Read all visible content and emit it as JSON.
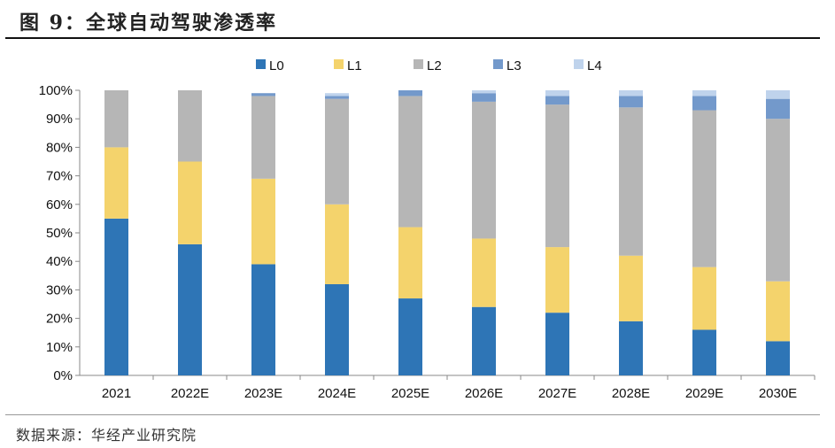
{
  "title": "图 9：全球自动驾驶渗透率",
  "source": "数据来源：华经产业研究院",
  "chart_data": {
    "type": "bar",
    "stacked": true,
    "title": "",
    "xlabel": "",
    "ylabel": "",
    "ylim": [
      0,
      100
    ],
    "yticks": [
      "0%",
      "10%",
      "20%",
      "30%",
      "40%",
      "50%",
      "60%",
      "70%",
      "80%",
      "90%",
      "100%"
    ],
    "grid": false,
    "legend": "top",
    "categories": [
      "2021",
      "2022E",
      "2023E",
      "2024E",
      "2025E",
      "2026E",
      "2027E",
      "2028E",
      "2029E",
      "2030E"
    ],
    "series": [
      {
        "name": "L0",
        "color": "#2E75B6",
        "values": [
          55,
          46,
          39,
          32,
          27,
          24,
          22,
          19,
          16,
          12
        ]
      },
      {
        "name": "L1",
        "color": "#F4D36C",
        "values": [
          25,
          29,
          30,
          28,
          25,
          24,
          23,
          23,
          22,
          21
        ]
      },
      {
        "name": "L2",
        "color": "#B6B6B6",
        "values": [
          20,
          25,
          29,
          37,
          46,
          48,
          50,
          52,
          55,
          57
        ]
      },
      {
        "name": "L3",
        "color": "#7399CB",
        "values": [
          0,
          0,
          1,
          1,
          2,
          3,
          3,
          4,
          5,
          7
        ]
      },
      {
        "name": "L4",
        "color": "#BFD3EC",
        "values": [
          0,
          0,
          0,
          1,
          0,
          1,
          2,
          2,
          2,
          3
        ]
      }
    ]
  }
}
